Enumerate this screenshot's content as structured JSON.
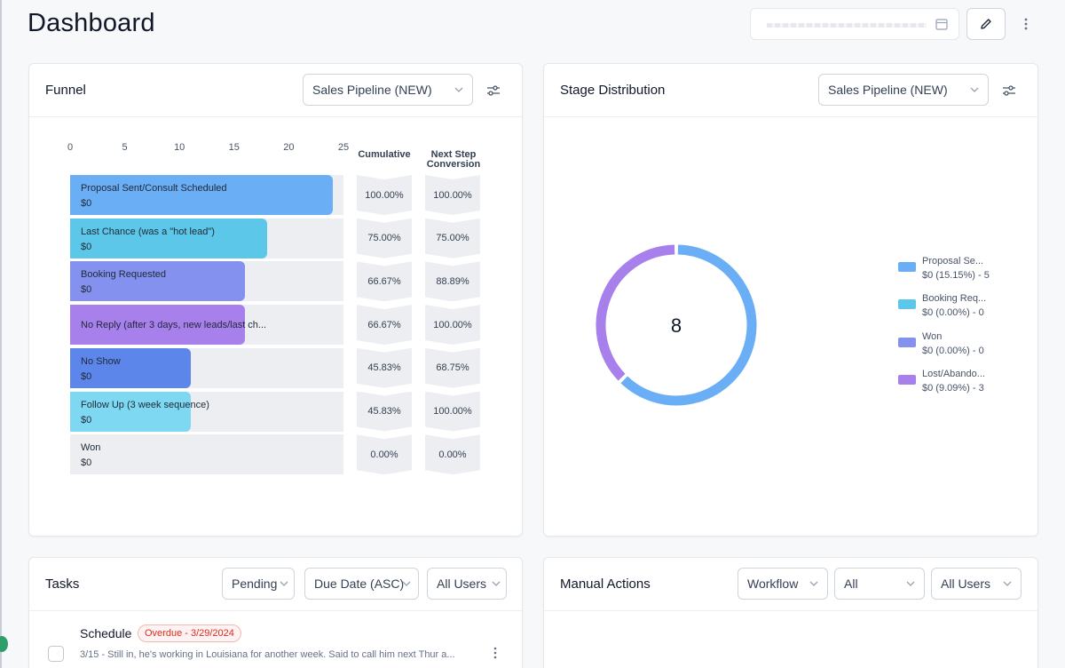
{
  "header": {
    "title": "Dashboard"
  },
  "funnel": {
    "title": "Funnel",
    "pipeline_select": "Sales Pipeline (NEW)",
    "axis_ticks": [
      "0",
      "5",
      "10",
      "15",
      "20",
      "25"
    ],
    "col_cumulative": "Cumulative",
    "col_next_line1": "Next Step",
    "col_next_line2": "Conversion",
    "stages": [
      {
        "label": "Proposal Sent/Consult Scheduled",
        "value": "$0",
        "count": 24,
        "color": "#6aaef5",
        "cumulative": "100.00%",
        "next": "100.00%"
      },
      {
        "label": "Last Chance (was a \"hot lead\")",
        "value": "$0",
        "count": 18,
        "color": "#5cc7e8",
        "cumulative": "75.00%",
        "next": "75.00%"
      },
      {
        "label": "Booking Requested",
        "value": "$0",
        "count": 16,
        "color": "#8491ee",
        "cumulative": "66.67%",
        "next": "88.89%"
      },
      {
        "label": "No Reply (after 3 days, new leads/last ch...",
        "value": "",
        "count": 16,
        "color": "#a780ec",
        "cumulative": "66.67%",
        "next": "100.00%"
      },
      {
        "label": "No Show",
        "value": "$0",
        "count": 11,
        "color": "#5c86ea",
        "cumulative": "45.83%",
        "next": "68.75%"
      },
      {
        "label": "Follow Up (3 week sequence)",
        "value": "$0",
        "count": 11,
        "color": "#7ed8f2",
        "cumulative": "45.83%",
        "next": "100.00%"
      },
      {
        "label": "Won",
        "value": "$0",
        "count": 0,
        "color": "#eceef1",
        "cumulative": "0.00%",
        "next": "0.00%"
      }
    ]
  },
  "stage_distribution": {
    "title": "Stage Distribution",
    "pipeline_select": "Sales Pipeline (NEW)",
    "total": "8",
    "legend": [
      {
        "name": "Proposal Se...",
        "value": "$0 (15.15%) - 5",
        "color": "#6aaef5"
      },
      {
        "name": "Booking Req...",
        "value": "$0 (0.00%) - 0",
        "color": "#5cc7e8"
      },
      {
        "name": "Won",
        "value": "$0 (0.00%) - 0",
        "color": "#8491ee"
      },
      {
        "name": "Lost/Abando...",
        "value": "$0 (9.09%) - 3",
        "color": "#a780ec"
      }
    ],
    "segments": [
      {
        "name": "Proposal Sent",
        "count": 5,
        "color": "#6aaef5"
      },
      {
        "name": "Lost/Abandoned",
        "count": 3,
        "color": "#a780ec"
      }
    ]
  },
  "tasks": {
    "title": "Tasks",
    "status_select": "Pending",
    "sort_select": "Due Date (ASC)",
    "users_select": "All Users",
    "items": [
      {
        "title": "Schedule",
        "badge": "Overdue - 3/29/2024",
        "note": "3/15 - Still in, he's working in Louisiana for another week. Said to call him next Thur a..."
      }
    ]
  },
  "manual_actions": {
    "title": "Manual Actions",
    "type_select": "Workflow",
    "filter_select": "All",
    "users_select": "All Users"
  },
  "chart_data": {
    "type": "bar",
    "categories": [
      "Proposal Sent/Consult Scheduled",
      "Last Chance (was a \"hot lead\")",
      "Booking Requested",
      "No Reply (after 3 days, new leads/last ch...",
      "No Show",
      "Follow Up (3 week sequence)",
      "Won"
    ],
    "values": [
      24,
      18,
      16,
      16,
      11,
      11,
      0
    ],
    "xlim": [
      0,
      25
    ]
  }
}
